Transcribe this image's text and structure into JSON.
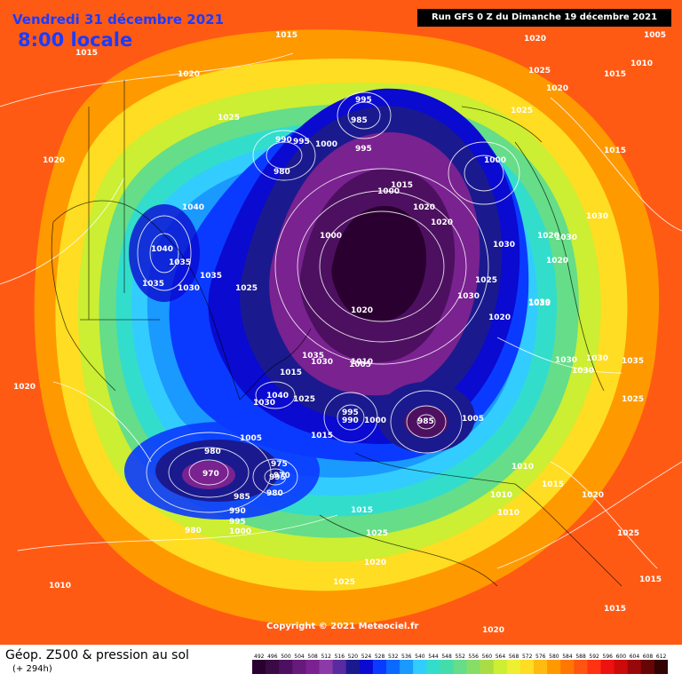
{
  "header": {
    "date_line": "Vendredi 31 décembre 2021",
    "time_line": "8:00 locale",
    "run_info": "Run GFS 0 Z du Dimanche 19 décembre 2021"
  },
  "footer": {
    "copyright": "Copyright © 2021 Meteociel.fr",
    "legend_title": "Géop. Z500 & pression au sol",
    "legend_sub": "(+ 294h)"
  },
  "colors": {
    "deep_purple": "#3a0a3a",
    "purple": "#7a1e8c",
    "navy": "#1a1a6e",
    "blue": "#0a2aff",
    "cyan": "#33ccff",
    "green": "#66cc66",
    "yellow": "#ffee33",
    "orange": "#ff8800",
    "red": "#ff3a1a"
  },
  "scale": {
    "labels": [
      "492",
      "496",
      "500",
      "504",
      "508",
      "512",
      "516",
      "520",
      "524",
      "528",
      "532",
      "536",
      "540",
      "544",
      "548",
      "552",
      "556",
      "560",
      "564",
      "568",
      "572",
      "576",
      "580",
      "584",
      "588",
      "592",
      "596",
      "600",
      "604",
      "608",
      "612"
    ],
    "colors": [
      "#2a0030",
      "#3a0a44",
      "#4d1060",
      "#661a7a",
      "#7a2290",
      "#8c3aa8",
      "#5a2aa0",
      "#1a1a8e",
      "#0a0ad0",
      "#0a3aff",
      "#0a6aff",
      "#1a99ff",
      "#33ccff",
      "#33ddcc",
      "#44ddaa",
      "#66dd88",
      "#88dd66",
      "#aadd44",
      "#ccee33",
      "#eeee33",
      "#ffdd22",
      "#ffbb11",
      "#ff9900",
      "#ff7700",
      "#ff5511",
      "#ff3311",
      "#ee1111",
      "#cc0a0a",
      "#990808",
      "#660505",
      "#330202"
    ]
  },
  "map_labels": [
    {
      "t": "1015"
    },
    {
      "t": "1015"
    },
    {
      "t": "1020"
    },
    {
      "t": "1025"
    },
    {
      "t": "1020"
    },
    {
      "t": "1020"
    },
    {
      "t": "1025"
    },
    {
      "t": "1020"
    },
    {
      "t": "1010"
    },
    {
      "t": "1005"
    },
    {
      "t": "1015"
    },
    {
      "t": "1025"
    },
    {
      "t": "1015"
    },
    {
      "t": "1030"
    },
    {
      "t": "1020"
    },
    {
      "t": "1020"
    },
    {
      "t": "1040"
    },
    {
      "t": "1040"
    },
    {
      "t": "1035"
    },
    {
      "t": "1035"
    },
    {
      "t": "1030"
    },
    {
      "t": "1035"
    },
    {
      "t": "1025"
    },
    {
      "t": "1030"
    },
    {
      "t": "1030"
    },
    {
      "t": "1015"
    },
    {
      "t": "1040"
    },
    {
      "t": "1030"
    },
    {
      "t": "1025"
    },
    {
      "t": "1035"
    },
    {
      "t": "1030"
    },
    {
      "t": "1020"
    },
    {
      "t": "1005"
    },
    {
      "t": "1010"
    },
    {
      "t": "1000"
    },
    {
      "t": "995"
    },
    {
      "t": "985"
    },
    {
      "t": "990"
    },
    {
      "t": "995"
    },
    {
      "t": "980"
    },
    {
      "t": "1000"
    },
    {
      "t": "995"
    },
    {
      "t": "1000"
    },
    {
      "t": "1000"
    },
    {
      "t": "1015"
    },
    {
      "t": "1020"
    },
    {
      "t": "1020"
    },
    {
      "t": "1030"
    },
    {
      "t": "1025"
    },
    {
      "t": "1020"
    },
    {
      "t": "1035"
    },
    {
      "t": "995"
    },
    {
      "t": "990"
    },
    {
      "t": "1000"
    },
    {
      "t": "1005"
    },
    {
      "t": "1015"
    },
    {
      "t": "985"
    },
    {
      "t": "1005"
    },
    {
      "t": "975"
    },
    {
      "t": "970"
    },
    {
      "t": "980"
    },
    {
      "t": "995"
    },
    {
      "t": "980"
    },
    {
      "t": "970"
    },
    {
      "t": "985"
    },
    {
      "t": "990"
    },
    {
      "t": "995"
    },
    {
      "t": "1000"
    },
    {
      "t": "980"
    },
    {
      "t": "1015"
    },
    {
      "t": "1025"
    },
    {
      "t": "1020"
    },
    {
      "t": "1025"
    },
    {
      "t": "1010"
    },
    {
      "t": "1010"
    },
    {
      "t": "1015"
    },
    {
      "t": "1020"
    },
    {
      "t": "1025"
    },
    {
      "t": "1030"
    },
    {
      "t": "1030"
    },
    {
      "t": "1035"
    },
    {
      "t": "1025"
    },
    {
      "t": "1010"
    },
    {
      "t": "1015"
    },
    {
      "t": "1015"
    },
    {
      "t": "1020"
    },
    {
      "t": "1010"
    },
    {
      "t": "1030"
    },
    {
      "t": "1030"
    },
    {
      "t": "1020"
    }
  ]
}
